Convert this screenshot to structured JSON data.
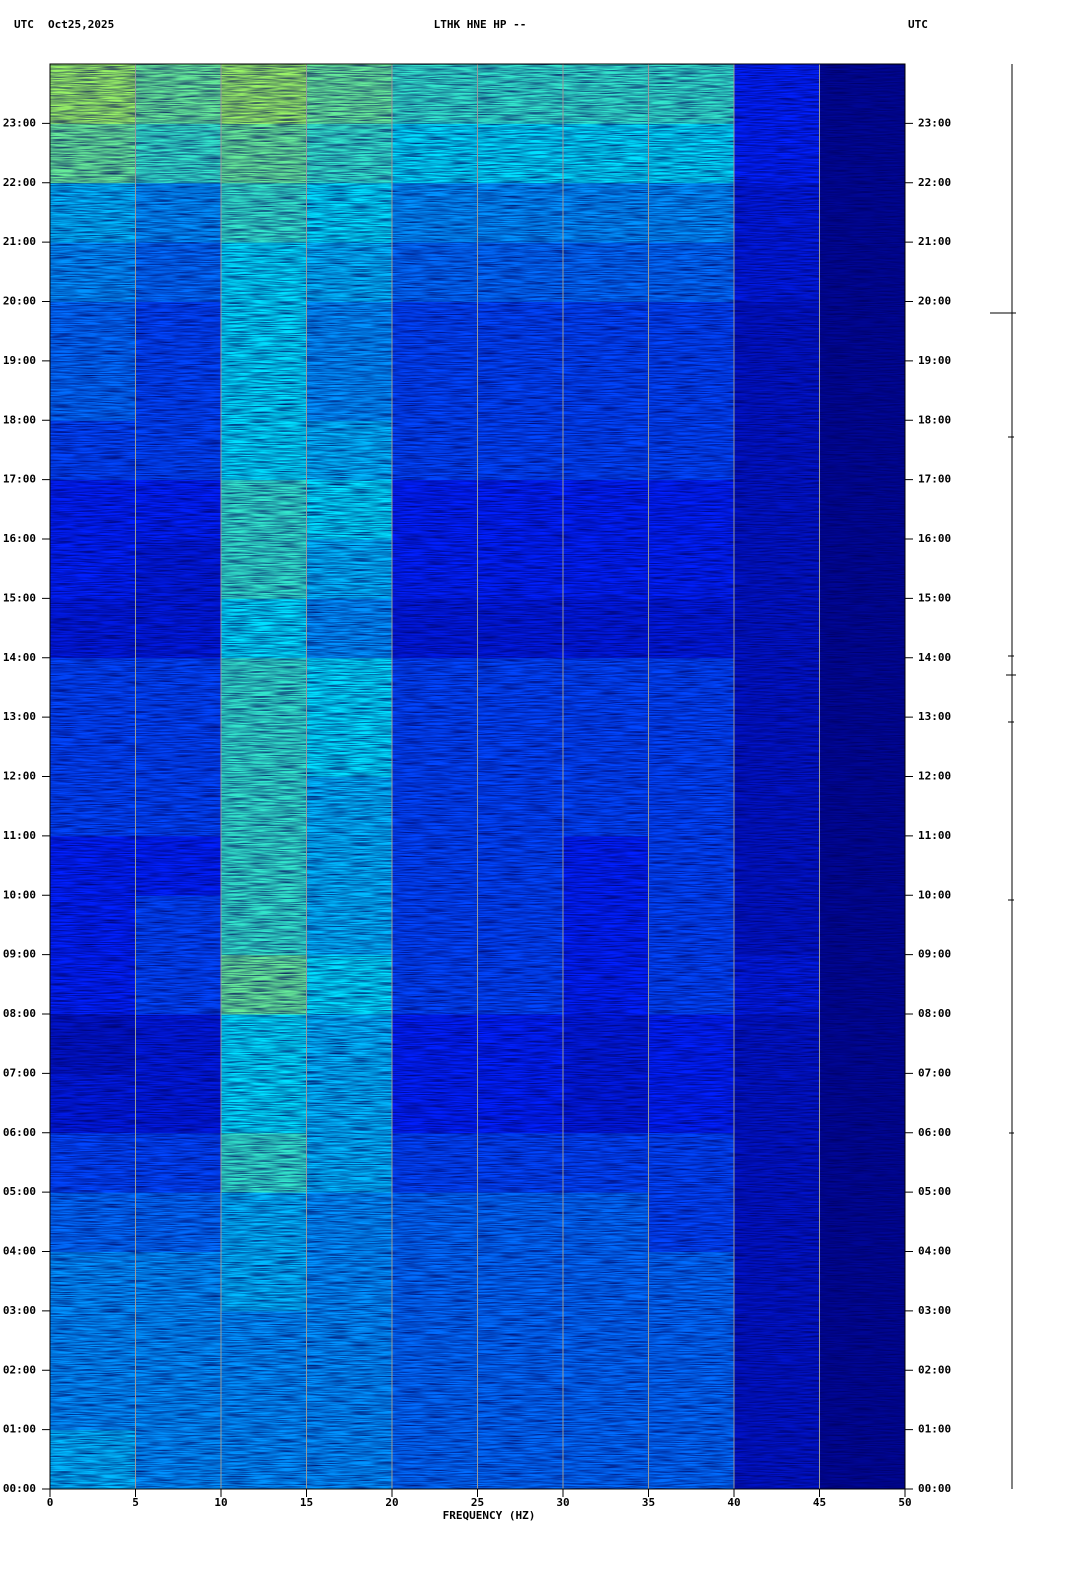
{
  "chart_data": {
    "type": "heatmap",
    "title": "LTHK HNE HP --",
    "timezone_left": "UTC",
    "date": "Oct25,2025",
    "timezone_right": "UTC",
    "xlabel": "FREQUENCY (HZ)",
    "xlim": [
      0,
      50
    ],
    "xticks": [
      0,
      5,
      10,
      15,
      20,
      25,
      30,
      35,
      40,
      45,
      50
    ],
    "ylim": [
      0,
      24
    ],
    "yticks": [
      {
        "value": 0,
        "label": "00:00"
      },
      {
        "value": 1,
        "label": "01:00"
      },
      {
        "value": 2,
        "label": "02:00"
      },
      {
        "value": 3,
        "label": "03:00"
      },
      {
        "value": 4,
        "label": "04:00"
      },
      {
        "value": 5,
        "label": "05:00"
      },
      {
        "value": 6,
        "label": "06:00"
      },
      {
        "value": 7,
        "label": "07:00"
      },
      {
        "value": 8,
        "label": "08:00"
      },
      {
        "value": 9,
        "label": "09:00"
      },
      {
        "value": 10,
        "label": "10:00"
      },
      {
        "value": 11,
        "label": "11:00"
      },
      {
        "value": 12,
        "label": "12:00"
      },
      {
        "value": 13,
        "label": "13:00"
      },
      {
        "value": 14,
        "label": "14:00"
      },
      {
        "value": 15,
        "label": "15:00"
      },
      {
        "value": 16,
        "label": "16:00"
      },
      {
        "value": 17,
        "label": "17:00"
      },
      {
        "value": 18,
        "label": "18:00"
      },
      {
        "value": 19,
        "label": "19:00"
      },
      {
        "value": 20,
        "label": "20:00"
      },
      {
        "value": 21,
        "label": "21:00"
      },
      {
        "value": 22,
        "label": "22:00"
      },
      {
        "value": 23,
        "label": "23:00"
      }
    ],
    "grid": true,
    "colors": [
      "#00007a",
      "#0020ff",
      "#00e0ff",
      "#ffff00",
      "#e00000"
    ],
    "x_bins": [
      0,
      5,
      10,
      15,
      20,
      25,
      30,
      35,
      40,
      45,
      50
    ],
    "y_bins": [
      0,
      1,
      2,
      3,
      4,
      5,
      6,
      7,
      8,
      9,
      10,
      11,
      12,
      13,
      14,
      15,
      16,
      17,
      18,
      19,
      20,
      21,
      22,
      23,
      24
    ],
    "z": [
      [
        0.45,
        0.4,
        0.4,
        0.4,
        0.35,
        0.35,
        0.35,
        0.35,
        0.15,
        0.05
      ],
      [
        0.4,
        0.4,
        0.4,
        0.4,
        0.35,
        0.35,
        0.35,
        0.35,
        0.15,
        0.05
      ],
      [
        0.4,
        0.4,
        0.4,
        0.4,
        0.35,
        0.35,
        0.35,
        0.35,
        0.15,
        0.05
      ],
      [
        0.4,
        0.4,
        0.45,
        0.4,
        0.35,
        0.35,
        0.35,
        0.35,
        0.15,
        0.05
      ],
      [
        0.35,
        0.35,
        0.45,
        0.4,
        0.35,
        0.35,
        0.35,
        0.3,
        0.15,
        0.05
      ],
      [
        0.3,
        0.3,
        0.55,
        0.45,
        0.3,
        0.3,
        0.3,
        0.3,
        0.15,
        0.05
      ],
      [
        0.2,
        0.2,
        0.5,
        0.45,
        0.25,
        0.25,
        0.2,
        0.25,
        0.15,
        0.05
      ],
      [
        0.15,
        0.2,
        0.5,
        0.45,
        0.25,
        0.25,
        0.2,
        0.25,
        0.15,
        0.05
      ],
      [
        0.25,
        0.3,
        0.6,
        0.5,
        0.3,
        0.3,
        0.25,
        0.3,
        0.2,
        0.05
      ],
      [
        0.25,
        0.3,
        0.55,
        0.45,
        0.3,
        0.3,
        0.25,
        0.3,
        0.15,
        0.05
      ],
      [
        0.25,
        0.25,
        0.55,
        0.45,
        0.3,
        0.3,
        0.25,
        0.3,
        0.15,
        0.05
      ],
      [
        0.3,
        0.3,
        0.55,
        0.45,
        0.3,
        0.3,
        0.3,
        0.3,
        0.15,
        0.05
      ],
      [
        0.3,
        0.3,
        0.55,
        0.5,
        0.3,
        0.3,
        0.3,
        0.3,
        0.15,
        0.05
      ],
      [
        0.3,
        0.3,
        0.55,
        0.5,
        0.3,
        0.3,
        0.3,
        0.3,
        0.15,
        0.05
      ],
      [
        0.2,
        0.2,
        0.5,
        0.4,
        0.2,
        0.2,
        0.2,
        0.2,
        0.15,
        0.05
      ],
      [
        0.25,
        0.2,
        0.55,
        0.45,
        0.25,
        0.25,
        0.25,
        0.25,
        0.15,
        0.05
      ],
      [
        0.25,
        0.25,
        0.55,
        0.5,
        0.25,
        0.25,
        0.25,
        0.25,
        0.15,
        0.05
      ],
      [
        0.3,
        0.3,
        0.5,
        0.45,
        0.3,
        0.3,
        0.3,
        0.3,
        0.15,
        0.05
      ],
      [
        0.35,
        0.3,
        0.5,
        0.4,
        0.3,
        0.3,
        0.3,
        0.3,
        0.15,
        0.05
      ],
      [
        0.35,
        0.3,
        0.5,
        0.4,
        0.3,
        0.3,
        0.3,
        0.3,
        0.15,
        0.05
      ],
      [
        0.4,
        0.35,
        0.5,
        0.45,
        0.35,
        0.35,
        0.35,
        0.35,
        0.2,
        0.05
      ],
      [
        0.45,
        0.4,
        0.55,
        0.5,
        0.4,
        0.4,
        0.4,
        0.4,
        0.2,
        0.05
      ],
      [
        0.6,
        0.55,
        0.6,
        0.55,
        0.5,
        0.5,
        0.5,
        0.5,
        0.25,
        0.05
      ],
      [
        0.65,
        0.6,
        0.65,
        0.6,
        0.55,
        0.55,
        0.55,
        0.55,
        0.25,
        0.05
      ]
    ]
  }
}
